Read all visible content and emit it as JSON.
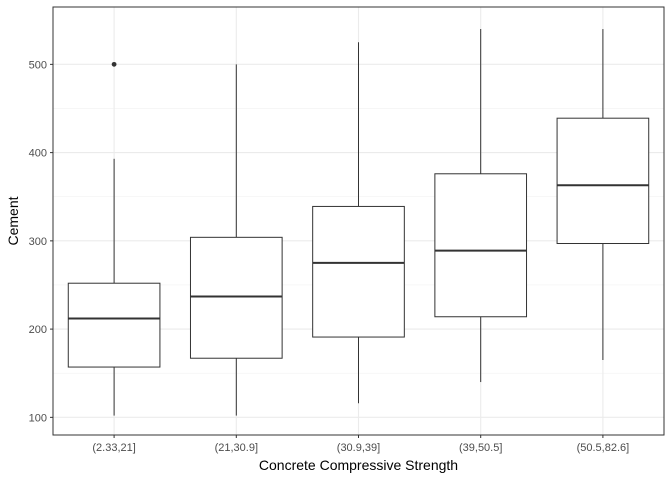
{
  "chart_data": {
    "type": "box",
    "title": "",
    "xlabel": "Concrete Compressive Strength",
    "ylabel": "Cement",
    "categories": [
      "(2.33,21]",
      "(21,30.9]",
      "(30.9,39]",
      "(39,50.5]",
      "(50.5,82.6]"
    ],
    "boxes": [
      {
        "whisker_low": 102,
        "q1": 157,
        "median": 212,
        "q3": 252,
        "whisker_high": 393,
        "outliers": [
          500
        ]
      },
      {
        "whisker_low": 102,
        "q1": 167,
        "median": 237,
        "q3": 304,
        "whisker_high": 500,
        "outliers": []
      },
      {
        "whisker_low": 116,
        "q1": 191,
        "median": 275,
        "q3": 339,
        "whisker_high": 525,
        "outliers": []
      },
      {
        "whisker_low": 140,
        "q1": 214,
        "median": 289,
        "q3": 376,
        "whisker_high": 540,
        "outliers": []
      },
      {
        "whisker_low": 165,
        "q1": 297,
        "median": 363,
        "q3": 439,
        "whisker_high": 540,
        "outliers": []
      }
    ],
    "y_ticks": [
      100,
      200,
      300,
      400,
      500
    ],
    "ylim": [
      80,
      565
    ],
    "grid": true,
    "legend": "none"
  }
}
